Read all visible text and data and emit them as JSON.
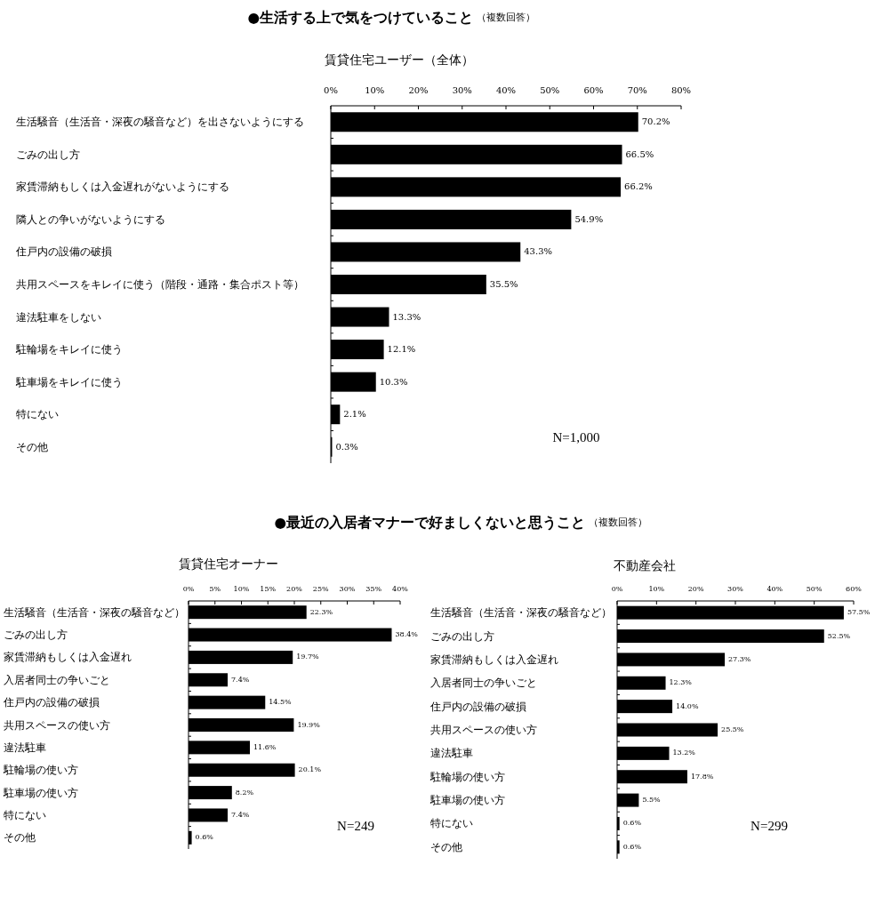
{
  "chart_data": [
    {
      "type": "bar",
      "orientation": "horizontal",
      "title": "**●生活する上で気をつけていること** （複数回答）",
      "subtitle": "賃貸住宅ユーザー（全体）",
      "categories": [
        "生活騒音（生活音・深夜の騒音など）を出さないようにする",
        "ごみの出し方",
        "家賃滞納もしくは入金遅れがないようにする",
        "隣人との争いがないようにする",
        "住戸内の設備の破損",
        "共用スペースをキレイに使う（階段・通路・集合ポスト等）",
        "違法駐車をしない",
        "駐輪場をキレイに使う",
        "駐車場をキレイに使う",
        "特にない",
        "その他"
      ],
      "values": [
        70.2,
        66.5,
        66.2,
        54.9,
        43.3,
        35.5,
        13.3,
        12.1,
        10.3,
        2.1,
        0.3
      ],
      "value_labels": [
        "70.2%",
        "66.5%",
        "66.2%",
        "54.9%",
        "43.3%",
        "35.5%",
        "13.3%",
        "12.1%",
        "10.3%",
        "2.1%",
        "0.3%"
      ],
      "color": "#000000",
      "xlim": [
        0,
        80
      ],
      "xticks": [
        {
          "value": 0,
          "label": "0%"
        },
        {
          "value": 10,
          "label": "10%"
        },
        {
          "value": 20,
          "label": "20%"
        },
        {
          "value": 30,
          "label": "30%"
        },
        {
          "value": 40,
          "label": "40%"
        },
        {
          "value": 50,
          "label": "50%"
        },
        {
          "value": 60,
          "label": "60%"
        },
        {
          "value": 70,
          "label": "70%"
        },
        {
          "value": 80,
          "label": "80%"
        }
      ],
      "annotations": [
        "N=1,000"
      ]
    },
    {
      "type": "bar",
      "orientation": "horizontal",
      "title": "**●最近の入居者マナーで好ましくないと思うこと** （複数回答）",
      "subtitle": "賃貸住宅オーナー",
      "categories": [
        "生活騒音（生活音・深夜の騒音など）",
        "ごみの出し方",
        "家賃滞納もしくは入金遅れ",
        "入居者同士の争いごと",
        "住戸内の設備の破損",
        "共用スペースの使い方",
        "違法駐車",
        "駐輪場の使い方",
        "駐車場の使い方",
        "特にない",
        "その他"
      ],
      "values": [
        22.3,
        38.4,
        19.7,
        7.4,
        14.5,
        19.9,
        11.6,
        20.1,
        8.2,
        7.4,
        0.6
      ],
      "value_labels": [
        "22.3%",
        "38.4%",
        "19.7%",
        "7.4%",
        "14.5%",
        "19.9%",
        "11.6%",
        "20.1%",
        "8.2%",
        "7.4%",
        "0.6%"
      ],
      "color": "#000000",
      "xlim": [
        0,
        40
      ],
      "xticks": [
        {
          "value": 0,
          "label": "0%"
        },
        {
          "value": 5,
          "label": "5%"
        },
        {
          "value": 10,
          "label": "10%"
        },
        {
          "value": 15,
          "label": "15%"
        },
        {
          "value": 20,
          "label": "20%"
        },
        {
          "value": 25,
          "label": "25%"
        },
        {
          "value": 30,
          "label": "30%"
        },
        {
          "value": 35,
          "label": "35%"
        },
        {
          "value": 40,
          "label": "40%"
        }
      ],
      "annotations": [
        "N=249"
      ]
    },
    {
      "type": "bar",
      "orientation": "horizontal",
      "subtitle": "不動産会社",
      "categories": [
        "生活騒音（生活音・深夜の騒音など）",
        "ごみの出し方",
        "家賃滞納もしくは入金遅れ",
        "入居者同士の争いごと",
        "住戸内の設備の破損",
        "共用スペースの使い方",
        "違法駐車",
        "駐輪場の使い方",
        "駐車場の使い方",
        "特にない",
        "その他"
      ],
      "values": [
        57.5,
        52.5,
        27.3,
        12.3,
        14.0,
        25.5,
        13.2,
        17.8,
        5.5,
        0.6,
        0.6
      ],
      "value_labels": [
        "57.5%",
        "52.5%",
        "27.3%",
        "12.3%",
        "14.0%",
        "25.5%",
        "13.2%",
        "17.8%",
        "5.5%",
        "0.6%",
        "0.6%"
      ],
      "color": "#000000",
      "xlim": [
        0,
        60
      ],
      "xticks": [
        {
          "value": 0,
          "label": "0%"
        },
        {
          "value": 10,
          "label": "10%"
        },
        {
          "value": 20,
          "label": "20%"
        },
        {
          "value": 30,
          "label": "30%"
        },
        {
          "value": 40,
          "label": "40%"
        },
        {
          "value": 50,
          "label": "50%"
        },
        {
          "value": 60,
          "label": "60%"
        }
      ],
      "annotations": [
        "N=299"
      ]
    }
  ]
}
